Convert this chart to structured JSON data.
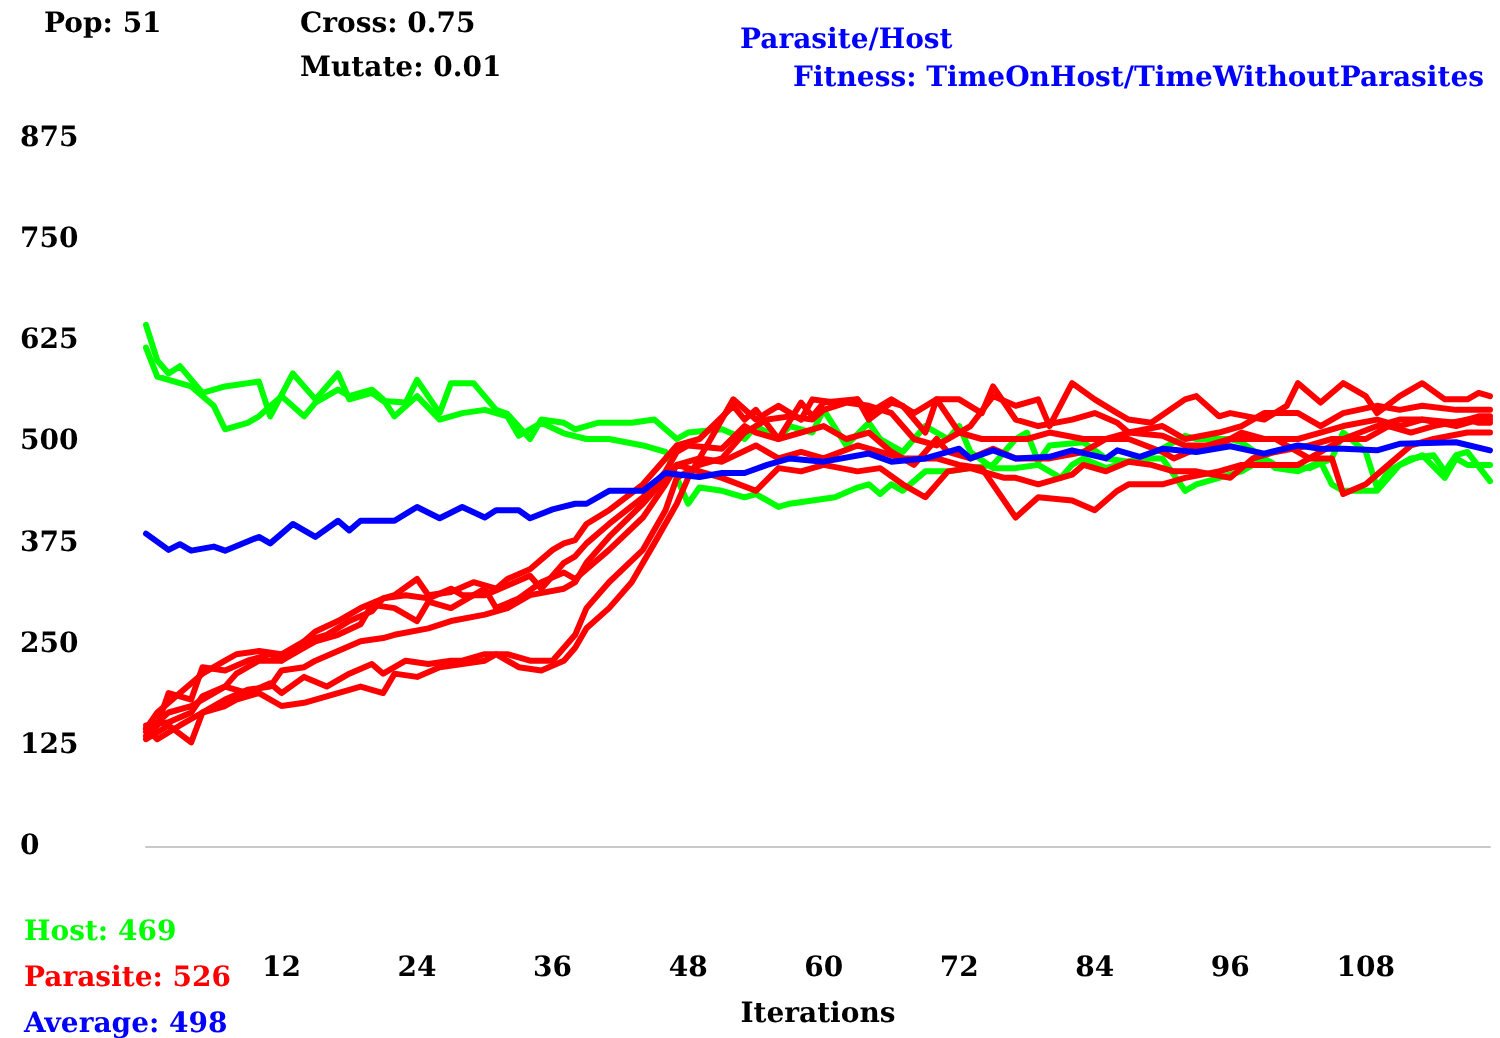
{
  "chart_data": {
    "type": "line",
    "title": "Parasite/Host",
    "subtitle": "Fitness: TimeOnHost/TimeWithoutParasites",
    "xlabel": "Iterations",
    "annotations": [
      "Pop: 51",
      "Cross: 0.75",
      "Mutate: 0.01"
    ],
    "xlim": [
      0,
      119
    ],
    "ylim": [
      0,
      875
    ],
    "xticks": [
      12,
      24,
      36,
      48,
      60,
      72,
      84,
      96,
      108
    ],
    "yticks": [
      0,
      125,
      250,
      375,
      500,
      625,
      750,
      875
    ],
    "legend": "bottom left",
    "series": [
      {
        "name": "Host: 469",
        "color": "#00ff00",
        "x": [
          0,
          1,
          2,
          3,
          5,
          7,
          10,
          11,
          13,
          15,
          17,
          18,
          20,
          21,
          23,
          24,
          26,
          27,
          29,
          31,
          32,
          34,
          35,
          37,
          38,
          40,
          43,
          45,
          47,
          48,
          51,
          53,
          54,
          56,
          57,
          59,
          60,
          62,
          64,
          65,
          67,
          69,
          71,
          72,
          73,
          75,
          77,
          79,
          81,
          82,
          83,
          85,
          87,
          89,
          90,
          92,
          93,
          95,
          97,
          99,
          100,
          102,
          104,
          105,
          106,
          109,
          111,
          113,
          115,
          116,
          117,
          119
        ],
        "values": [
          644,
          600,
          584,
          593,
          560,
          568,
          574,
          531,
          584,
          552,
          584,
          552,
          560,
          550,
          548,
          576,
          535,
          572,
          572,
          539,
          534,
          503,
          527,
          523,
          515,
          523,
          523,
          527,
          503,
          511,
          515,
          503,
          519,
          503,
          519,
          511,
          539,
          495,
          523,
          503,
          487,
          519,
          503,
          519,
          487,
          467,
          467,
          471,
          455,
          471,
          479,
          467,
          475,
          479,
          479,
          439,
          447,
          455,
          463,
          479,
          467,
          463,
          475,
          447,
          439,
          439,
          471,
          483,
          455,
          479,
          471,
          471
        ]
      },
      {
        "color": "#00ff00",
        "x": [
          0,
          1,
          2,
          4,
          6,
          7,
          9,
          10,
          12,
          14,
          15,
          17,
          18,
          20,
          21,
          22,
          24,
          26,
          28,
          30,
          32,
          33,
          35,
          37,
          39,
          41,
          44,
          46,
          48,
          49,
          51,
          53,
          54,
          56,
          57,
          59,
          61,
          63,
          64,
          65,
          66,
          67,
          69,
          71,
          73,
          75,
          77,
          78,
          79,
          80,
          83,
          85,
          87,
          90,
          92,
          93,
          96,
          97,
          99,
          100,
          103,
          105,
          106,
          108,
          109,
          110,
          112,
          114,
          115,
          116,
          117,
          119
        ],
        "values": [
          616,
          580,
          576,
          568,
          544,
          515,
          523,
          531,
          556,
          531,
          548,
          564,
          556,
          564,
          552,
          531,
          556,
          527,
          535,
          539,
          531,
          507,
          523,
          510,
          503,
          503,
          495,
          487,
          423,
          443,
          439,
          431,
          435,
          419,
          423,
          427,
          431,
          443,
          447,
          435,
          447,
          439,
          463,
          463,
          467,
          471,
          503,
          511,
          475,
          495,
          499,
          479,
          475,
          491,
          507,
          503,
          503,
          499,
          479,
          471,
          467,
          479,
          511,
          487,
          443,
          463,
          479,
          483,
          463,
          483,
          487,
          451
        ]
      },
      {
        "name": "Parasite: 526",
        "color": "#ff0000",
        "x": [
          0,
          1,
          3,
          5,
          7,
          8,
          10,
          12,
          14,
          15,
          17,
          19,
          21,
          22,
          24,
          25,
          27,
          29,
          31,
          32,
          34,
          36,
          37,
          38,
          39,
          41,
          44,
          46,
          47,
          49,
          52,
          53,
          54,
          56,
          58,
          59,
          60,
          63,
          64,
          66,
          67,
          69,
          70,
          72,
          74,
          75,
          77,
          79,
          82,
          84,
          86,
          87,
          90,
          92,
          95,
          97,
          99,
          102,
          104,
          106,
          109,
          111,
          113,
          116,
          118,
          119
        ],
        "values": [
          145,
          165,
          189,
          213,
          229,
          237,
          241,
          237,
          253,
          265,
          278,
          294,
          306,
          310,
          330,
          310,
          314,
          326,
          318,
          330,
          342,
          366,
          374,
          378,
          398,
          415,
          447,
          479,
          495,
          503,
          544,
          527,
          539,
          503,
          548,
          531,
          548,
          552,
          527,
          548,
          544,
          511,
          552,
          552,
          535,
          568,
          527,
          519,
          527,
          535,
          523,
          511,
          519,
          503,
          511,
          519,
          535,
          535,
          519,
          535,
          544,
          539,
          544,
          539,
          539,
          539
        ]
      },
      {
        "color": "#ff0000",
        "x": [
          0,
          1,
          2,
          4,
          5,
          7,
          9,
          11,
          12,
          14,
          16,
          18,
          20,
          21,
          23,
          25,
          27,
          28,
          30,
          32,
          34,
          35,
          37,
          38,
          39,
          41,
          44,
          46,
          47,
          48,
          51,
          53,
          54,
          56,
          58,
          60,
          62,
          64,
          66,
          68,
          70,
          71,
          73,
          75,
          77,
          78,
          80,
          83,
          85,
          87,
          90,
          91,
          93,
          96,
          98,
          100,
          103,
          105,
          106,
          108,
          110,
          112,
          114,
          117,
          118,
          119
        ],
        "values": [
          136,
          149,
          189,
          181,
          221,
          217,
          229,
          237,
          229,
          253,
          261,
          278,
          290,
          306,
          310,
          306,
          318,
          310,
          310,
          322,
          334,
          318,
          350,
          358,
          374,
          398,
          431,
          463,
          487,
          495,
          491,
          519,
          511,
          503,
          511,
          519,
          503,
          511,
          487,
          471,
          503,
          487,
          479,
          491,
          479,
          479,
          479,
          487,
          503,
          503,
          487,
          479,
          491,
          503,
          503,
          503,
          479,
          479,
          435,
          447,
          471,
          495,
          503,
          511,
          511,
          511
        ]
      },
      {
        "color": "#ff0000",
        "x": [
          0,
          2,
          4,
          5,
          7,
          8,
          10,
          12,
          14,
          15,
          17,
          19,
          20,
          22,
          24,
          25,
          27,
          30,
          31,
          33,
          35,
          37,
          38,
          39,
          41,
          44,
          46,
          47,
          48,
          51,
          54,
          56,
          58,
          60,
          63,
          65,
          67,
          69,
          71,
          73,
          76,
          77,
          79,
          82,
          83,
          85,
          87,
          89,
          91,
          93,
          96,
          98,
          100,
          103,
          105,
          108,
          110,
          112,
          114,
          117,
          118,
          119
        ],
        "values": [
          149,
          153,
          165,
          185,
          197,
          213,
          229,
          229,
          245,
          253,
          261,
          274,
          298,
          294,
          278,
          302,
          294,
          318,
          294,
          306,
          326,
          338,
          330,
          342,
          366,
          406,
          447,
          471,
          467,
          455,
          439,
          467,
          463,
          471,
          463,
          467,
          447,
          431,
          463,
          467,
          455,
          455,
          447,
          459,
          471,
          463,
          475,
          471,
          463,
          463,
          455,
          479,
          487,
          495,
          503,
          503,
          519,
          511,
          519,
          527,
          523,
          523
        ]
      },
      {
        "color": "#ff0000",
        "x": [
          0,
          2,
          4,
          5,
          7,
          9,
          11,
          12,
          14,
          15,
          17,
          19,
          21,
          22,
          25,
          27,
          30,
          32,
          34,
          37,
          38,
          39,
          41,
          44,
          46,
          47,
          49,
          51,
          54,
          56,
          58,
          60,
          63,
          65,
          67,
          70,
          72,
          74,
          77,
          79,
          82,
          84,
          86,
          87,
          90,
          92,
          95,
          97,
          99,
          102,
          104,
          106,
          109,
          111,
          113,
          116,
          118,
          119
        ],
        "values": [
          132,
          149,
          128,
          165,
          181,
          193,
          197,
          217,
          221,
          229,
          241,
          253,
          257,
          261,
          269,
          278,
          286,
          294,
          310,
          318,
          326,
          350,
          382,
          423,
          455,
          471,
          479,
          475,
          495,
          479,
          487,
          479,
          495,
          487,
          479,
          479,
          471,
          467,
          406,
          431,
          427,
          415,
          439,
          447,
          447,
          455,
          463,
          471,
          471,
          471,
          487,
          503,
          519,
          527,
          527,
          519,
          527,
          527
        ]
      },
      {
        "color": "#ff0000",
        "x": [
          0,
          2,
          4,
          5,
          7,
          9,
          11,
          12,
          14,
          16,
          18,
          20,
          21,
          23,
          25,
          27,
          28,
          30,
          32,
          34,
          36,
          38,
          39,
          41,
          44,
          46,
          47,
          49,
          51,
          53,
          55,
          57,
          59,
          60,
          62,
          64,
          66,
          68,
          70,
          72,
          74,
          77,
          78,
          80,
          83,
          85,
          87,
          90,
          92,
          95,
          97,
          99,
          102,
          104,
          106,
          109,
          111,
          113,
          116,
          118,
          119
        ],
        "values": [
          141,
          165,
          173,
          181,
          197,
          189,
          201,
          189,
          209,
          197,
          213,
          225,
          213,
          229,
          225,
          229,
          229,
          237,
          237,
          229,
          229,
          261,
          294,
          326,
          366,
          415,
          455,
          471,
          479,
          511,
          527,
          531,
          527,
          539,
          548,
          544,
          535,
          503,
          495,
          511,
          503,
          503,
          503,
          511,
          503,
          503,
          511,
          507,
          495,
          495,
          511,
          503,
          503,
          511,
          519,
          527,
          519,
          527,
          523,
          531,
          531
        ]
      },
      {
        "color": "#ff0000",
        "x": [
          0,
          1,
          3,
          5,
          7,
          8,
          10,
          12,
          14,
          15,
          17,
          19,
          21,
          22,
          24,
          26,
          28,
          30,
          31,
          33,
          35,
          37,
          38,
          39,
          41,
          43,
          45,
          47,
          48,
          50,
          52,
          54,
          56,
          58,
          59,
          61,
          63,
          64,
          66,
          68,
          70,
          72,
          73,
          75,
          77,
          79,
          80,
          82,
          84,
          86,
          87,
          89,
          92,
          93,
          95,
          96,
          99,
          101,
          102,
          104,
          106,
          108,
          109,
          111,
          113,
          115,
          117,
          118,
          119
        ],
        "values": [
          145,
          132,
          149,
          165,
          173,
          181,
          189,
          173,
          177,
          181,
          189,
          197,
          189,
          213,
          209,
          221,
          225,
          229,
          237,
          221,
          217,
          229,
          245,
          269,
          294,
          326,
          374,
          423,
          455,
          503,
          552,
          527,
          544,
          527,
          552,
          548,
          552,
          535,
          552,
          535,
          552,
          511,
          519,
          556,
          544,
          552,
          519,
          572,
          552,
          535,
          527,
          523,
          552,
          556,
          531,
          535,
          527,
          544,
          572,
          548,
          572,
          556,
          535,
          556,
          572,
          552,
          552,
          560,
          556
        ]
      },
      {
        "name": "Average: 498",
        "color": "#0000ff",
        "x": [
          0,
          2,
          3,
          4,
          6,
          7,
          10,
          11,
          13,
          15,
          17,
          18,
          19,
          22,
          24,
          26,
          28,
          30,
          31,
          33,
          34,
          36,
          38,
          39,
          41,
          44,
          46,
          49,
          51,
          53,
          55,
          57,
          60,
          64,
          66,
          69,
          70,
          72,
          73,
          75,
          77,
          80,
          82,
          85,
          86,
          88,
          90,
          93,
          96,
          99,
          102,
          104,
          106,
          109,
          111,
          116,
          119
        ],
        "values": [
          386,
          366,
          373,
          365,
          370,
          365,
          382,
          374,
          398,
          382,
          402,
          390,
          402,
          402,
          419,
          405,
          419,
          406,
          415,
          415,
          405,
          416,
          423,
          423,
          439,
          439,
          461,
          456,
          461,
          461,
          471,
          479,
          475,
          485,
          475,
          479,
          483,
          491,
          479,
          489,
          479,
          481,
          489,
          479,
          489,
          481,
          491,
          487,
          494,
          485,
          495,
          491,
          491,
          489,
          497,
          499,
          489
        ]
      }
    ]
  }
}
